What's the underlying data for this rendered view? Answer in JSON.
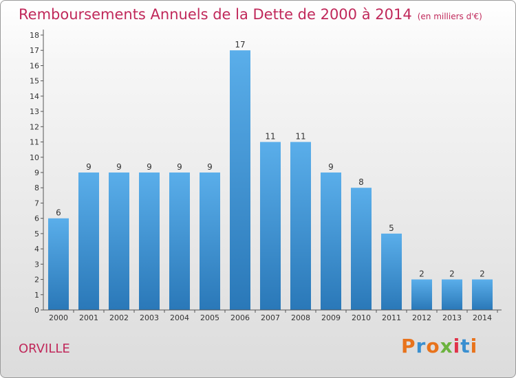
{
  "chart_data": {
    "type": "bar",
    "title": "Remboursements Annuels de la Dette de 2000 à 2014",
    "unit_note": "(en milliers d'€)",
    "categories": [
      "2000",
      "2001",
      "2002",
      "2003",
      "2004",
      "2005",
      "2006",
      "2007",
      "2008",
      "2009",
      "2010",
      "2011",
      "2012",
      "2013",
      "2014"
    ],
    "values": [
      6,
      9,
      9,
      9,
      9,
      9,
      17,
      11,
      11,
      9,
      8,
      5,
      2,
      2,
      2
    ],
    "ylim": [
      0,
      18
    ],
    "yticks": [
      0,
      1,
      2,
      3,
      4,
      5,
      6,
      7,
      8,
      9,
      10,
      11,
      12,
      13,
      14,
      15,
      16,
      17,
      18
    ],
    "grid": false,
    "bar_color_top": "#5aaeea",
    "bar_color_bottom": "#2a78b8"
  },
  "footer": {
    "commune": "ORVILLE",
    "brand": "Proxiti"
  }
}
